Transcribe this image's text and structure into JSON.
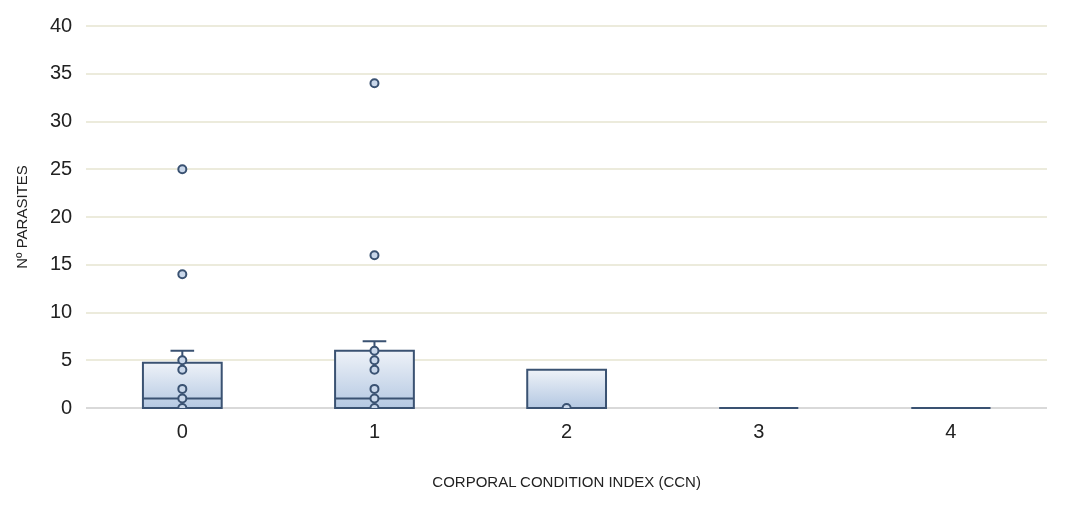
{
  "chart_data": {
    "type": "box",
    "xlabel": "CORPORAL CONDITION INDEX (CCN)",
    "ylabel": "Nº PARASITES",
    "categories": [
      "0",
      "1",
      "2",
      "3",
      "4"
    ],
    "ylim": [
      0,
      40
    ],
    "yticks": [
      0,
      5,
      10,
      15,
      20,
      25,
      30,
      35,
      40
    ],
    "grid": "y",
    "legend": false,
    "marker": "circle",
    "series": [
      {
        "type": "box",
        "color": "#3a5272",
        "boxes": [
          {
            "low": 0,
            "q1": 0,
            "median": 1,
            "q3": 4.75,
            "high": 6
          },
          {
            "low": 0,
            "q1": 0,
            "median": 1,
            "q3": 6,
            "high": 7
          },
          {
            "low": 0,
            "q1": 0,
            "median": 0,
            "q3": 4,
            "high": 4
          },
          {
            "low": 0,
            "q1": 0,
            "median": 0,
            "q3": 0,
            "high": 0
          },
          {
            "low": 0,
            "q1": 0,
            "median": 0,
            "q3": 0,
            "high": 0
          }
        ]
      },
      {
        "type": "scatter",
        "color": "#3a5272",
        "x": [
          "0",
          "0",
          "0",
          "0",
          "0",
          "0",
          "0",
          "1",
          "1",
          "1",
          "1",
          "1",
          "1",
          "1",
          "1",
          "2"
        ],
        "values": [
          0,
          1,
          2,
          4,
          5,
          14,
          25,
          0,
          1,
          2,
          4,
          5,
          6,
          16,
          34,
          0
        ]
      }
    ]
  }
}
